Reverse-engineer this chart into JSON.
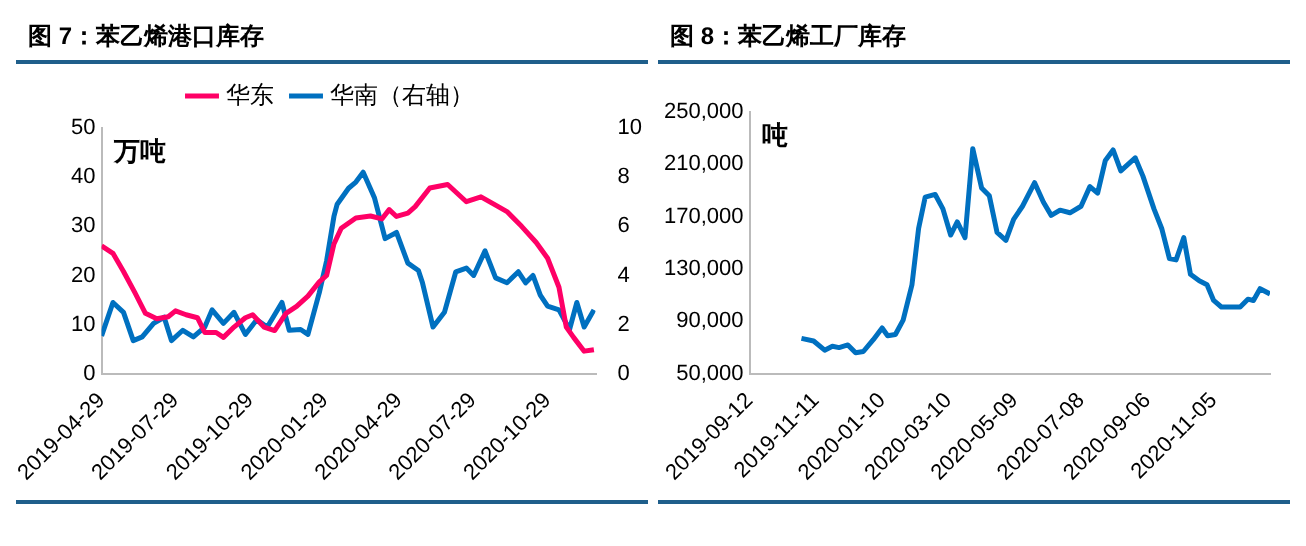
{
  "chart_data": [
    {
      "type": "line",
      "title": "图 7：苯乙烯港口库存",
      "ylabel": "万吨",
      "legend": "top",
      "xlim": [
        "2019-04-29",
        "2020-12-27"
      ],
      "xticks": [
        "2019-04-29",
        "2019-07-29",
        "2019-10-29",
        "2020-01-29",
        "2020-04-29",
        "2020-07-29",
        "2020-10-29"
      ],
      "ylim": [
        0,
        50
      ],
      "yticks": [
        0,
        10,
        20,
        30,
        40,
        50
      ],
      "y2lim": [
        0,
        10
      ],
      "y2ticks": [
        0,
        2,
        4,
        6,
        8,
        10
      ],
      "series": [
        {
          "name": "华东",
          "color": "#ff0066",
          "x": [
            "2019-04-29",
            "2019-05-13",
            "2019-05-26",
            "2019-06-09",
            "2019-06-22",
            "2019-07-06",
            "2019-07-20",
            "2019-07-29",
            "2019-08-11",
            "2019-08-25",
            "2019-09-03",
            "2019-09-17",
            "2019-09-26",
            "2019-10-09",
            "2019-10-23",
            "2019-11-01",
            "2019-11-15",
            "2019-11-28",
            "2019-12-12",
            "2019-12-25",
            "2020-01-08",
            "2020-01-22",
            "2020-01-31",
            "2020-02-09",
            "2020-02-18",
            "2020-03-07",
            "2020-03-25",
            "2020-04-08",
            "2020-04-17",
            "2020-04-26",
            "2020-05-10",
            "2020-05-19",
            "2020-06-06",
            "2020-06-28",
            "2020-07-21",
            "2020-08-08",
            "2020-08-26",
            "2020-09-09",
            "2020-09-27",
            "2020-10-15",
            "2020-10-29",
            "2020-11-12",
            "2020-11-21",
            "2020-11-30",
            "2020-12-13",
            "2020-12-25"
          ],
          "values": [
            26,
            24.5,
            20.8,
            16.5,
            12.3,
            11.2,
            11.6,
            12.8,
            12,
            11.4,
            8.4,
            8.4,
            7.4,
            9.5,
            11.4,
            12,
            9.5,
            8.8,
            12.3,
            13.7,
            15.8,
            18.7,
            20,
            26.4,
            29.6,
            31.7,
            32.1,
            31.5,
            33.4,
            32,
            32.7,
            34,
            37.8,
            38.5,
            35,
            36,
            34.3,
            33,
            30,
            26.7,
            23.5,
            17.6,
            9.5,
            7.4,
            4.6,
            4.9
          ]
        },
        {
          "name": "华南（右轴）",
          "color": "#0070c0",
          "axis": "y2",
          "x": [
            "2019-04-29",
            "2019-05-13",
            "2019-05-26",
            "2019-06-07",
            "2019-06-18",
            "2019-07-02",
            "2019-07-15",
            "2019-07-24",
            "2019-08-07",
            "2019-08-20",
            "2019-09-03",
            "2019-09-12",
            "2019-09-26",
            "2019-10-09",
            "2019-10-23",
            "2019-11-06",
            "2019-11-19",
            "2019-12-07",
            "2019-12-16",
            "2019-12-30",
            "2020-01-08",
            "2020-01-22",
            "2020-01-31",
            "2020-02-09",
            "2020-02-13",
            "2020-02-27",
            "2020-03-07",
            "2020-03-16",
            "2020-03-30",
            "2020-04-12",
            "2020-04-26",
            "2020-05-10",
            "2020-05-23",
            "2020-05-28",
            "2020-06-10",
            "2020-06-24",
            "2020-07-08",
            "2020-07-21",
            "2020-07-30",
            "2020-08-13",
            "2020-08-26",
            "2020-09-09",
            "2020-09-23",
            "2020-10-02",
            "2020-10-11",
            "2020-10-20",
            "2020-10-29",
            "2020-11-12",
            "2020-11-25",
            "2020-12-04",
            "2020-12-13",
            "2020-12-25"
          ],
          "values": [
            1.54,
            2.9,
            2.5,
            1.35,
            1.5,
            2.05,
            2.3,
            1.35,
            1.77,
            1.5,
            1.9,
            2.6,
            2.05,
            2.5,
            1.6,
            2.2,
            1.9,
            2.9,
            1.77,
            1.8,
            1.6,
            3.3,
            4.6,
            6.4,
            6.9,
            7.55,
            7.8,
            8.2,
            7.15,
            5.5,
            5.75,
            4.5,
            4.2,
            3.7,
            1.9,
            2.5,
            4.15,
            4.3,
            4,
            5,
            3.9,
            3.7,
            4.15,
            3.7,
            4,
            3.2,
            2.75,
            2.6,
            1.8,
            2.9,
            1.9,
            2.6
          ]
        }
      ]
    },
    {
      "type": "line",
      "title": "图 8：苯乙烯工厂库存",
      "ylabel": "吨",
      "xlim": [
        "2019-09-12",
        "2020-12-26"
      ],
      "xticks": [
        "2019-09-12",
        "2019-11-11",
        "2020-01-10",
        "2020-03-10",
        "2020-05-09",
        "2020-07-08",
        "2020-09-06",
        "2020-11-05"
      ],
      "ylim": [
        50000,
        250000
      ],
      "yticks": [
        {
          "value": 50000,
          "label": "50,000"
        },
        {
          "value": 90000,
          "label": "90,000"
        },
        {
          "value": 130000,
          "label": "130,000"
        },
        {
          "value": 170000,
          "label": "170,000"
        },
        {
          "value": 210000,
          "label": "210,000"
        },
        {
          "value": 250000,
          "label": "250,000"
        }
      ],
      "series": [
        {
          "color": "#0070c0",
          "x": [
            "2019-10-29",
            "2019-11-09",
            "2019-11-19",
            "2019-11-26",
            "2019-12-02",
            "2019-12-10",
            "2019-12-17",
            "2019-12-24",
            "2020-01-02",
            "2020-01-10",
            "2020-01-15",
            "2020-01-22",
            "2020-01-29",
            "2020-02-06",
            "2020-02-12",
            "2020-02-18",
            "2020-02-27",
            "2020-03-05",
            "2020-03-12",
            "2020-03-18",
            "2020-03-25",
            "2020-04-01",
            "2020-04-09",
            "2020-04-16",
            "2020-04-23",
            "2020-05-01",
            "2020-05-08",
            "2020-05-16",
            "2020-05-27",
            "2020-06-04",
            "2020-06-11",
            "2020-06-19",
            "2020-06-28",
            "2020-07-08",
            "2020-07-16",
            "2020-07-23",
            "2020-07-30",
            "2020-08-06",
            "2020-08-13",
            "2020-08-26",
            "2020-09-02",
            "2020-09-12",
            "2020-09-19",
            "2020-09-26",
            "2020-10-02",
            "2020-10-09",
            "2020-10-15",
            "2020-10-23",
            "2020-10-30",
            "2020-11-05",
            "2020-11-12",
            "2020-11-22",
            "2020-11-29",
            "2020-12-06",
            "2020-12-11",
            "2020-12-17",
            "2020-12-26"
          ],
          "values": [
            77000,
            75000,
            68000,
            71000,
            70000,
            72000,
            66000,
            67000,
            76000,
            85000,
            79000,
            80000,
            91000,
            118000,
            161000,
            185000,
            187000,
            176000,
            156000,
            166000,
            154000,
            222000,
            192000,
            186000,
            158000,
            152000,
            168000,
            178000,
            196000,
            181000,
            171000,
            175000,
            173000,
            178000,
            193000,
            188000,
            213000,
            221000,
            205000,
            215000,
            201000,
            176000,
            161000,
            138000,
            137000,
            154000,
            126000,
            121000,
            118000,
            106000,
            101000,
            101000,
            101000,
            107000,
            106000,
            115000,
            111000
          ]
        }
      ]
    }
  ]
}
